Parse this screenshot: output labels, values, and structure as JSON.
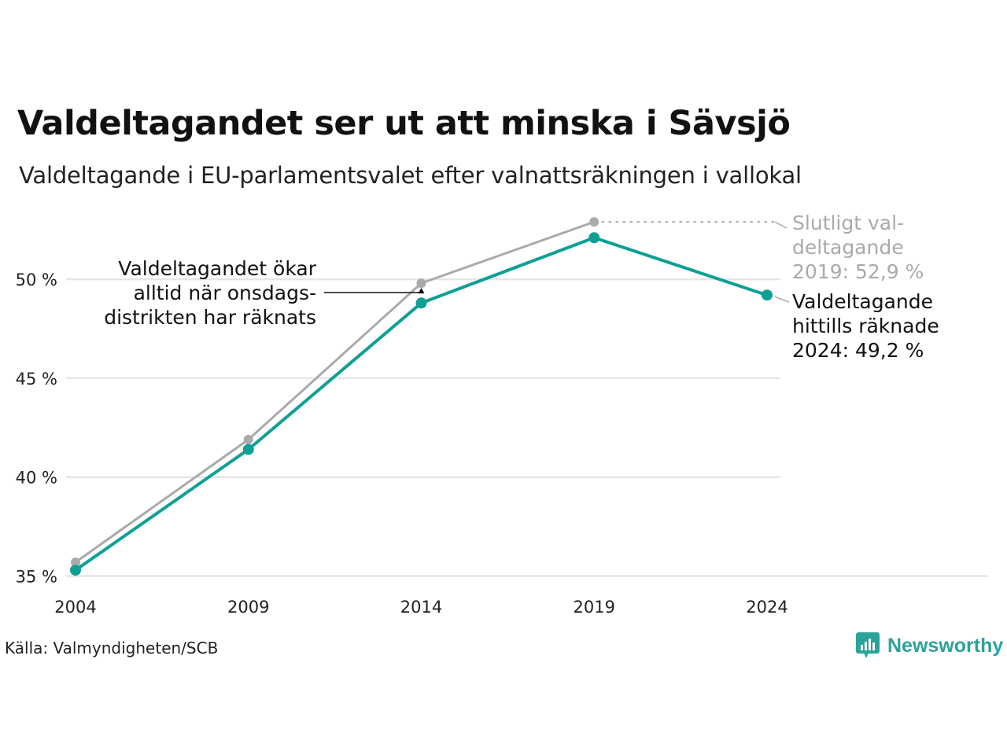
{
  "title": "Valdeltagandet ser ut att minska i Sävsjö",
  "subtitle": "Valdeltagande i EU-parlamentsvalet efter valnattsräkningen i vallokal",
  "source": "Källa: Valmyndigheten/SCB",
  "logo_text": "Newsworthy",
  "colors": {
    "final": "#aaaaaa",
    "counted": "#0fa095",
    "grid": "#e6e6e6",
    "axis_text": "#222222"
  },
  "chart_data": {
    "type": "line",
    "x": [
      "2004",
      "2009",
      "2014",
      "2019",
      "2024"
    ],
    "ylim": [
      35,
      53
    ],
    "yticks": [
      35,
      40,
      45,
      50
    ],
    "ytick_labels": [
      "35 %",
      "40 %",
      "45 %",
      "50 %"
    ],
    "grid": true,
    "series": [
      {
        "key": "final",
        "values": [
          35.7,
          41.9,
          49.8,
          52.9,
          null
        ]
      },
      {
        "key": "counted",
        "values": [
          35.3,
          41.4,
          48.8,
          52.1,
          49.2
        ]
      }
    ],
    "annotations": {
      "final": [
        "Slutligt val-",
        "deltagande",
        "2019: 52,9 %"
      ],
      "counted": [
        "Valdeltagande",
        "hittills räknade",
        "2024: 49,2 %"
      ],
      "wednesday": [
        "Valdeltagandet ökar",
        "alltid när onsdags-",
        "distrikten har räknats"
      ]
    }
  }
}
